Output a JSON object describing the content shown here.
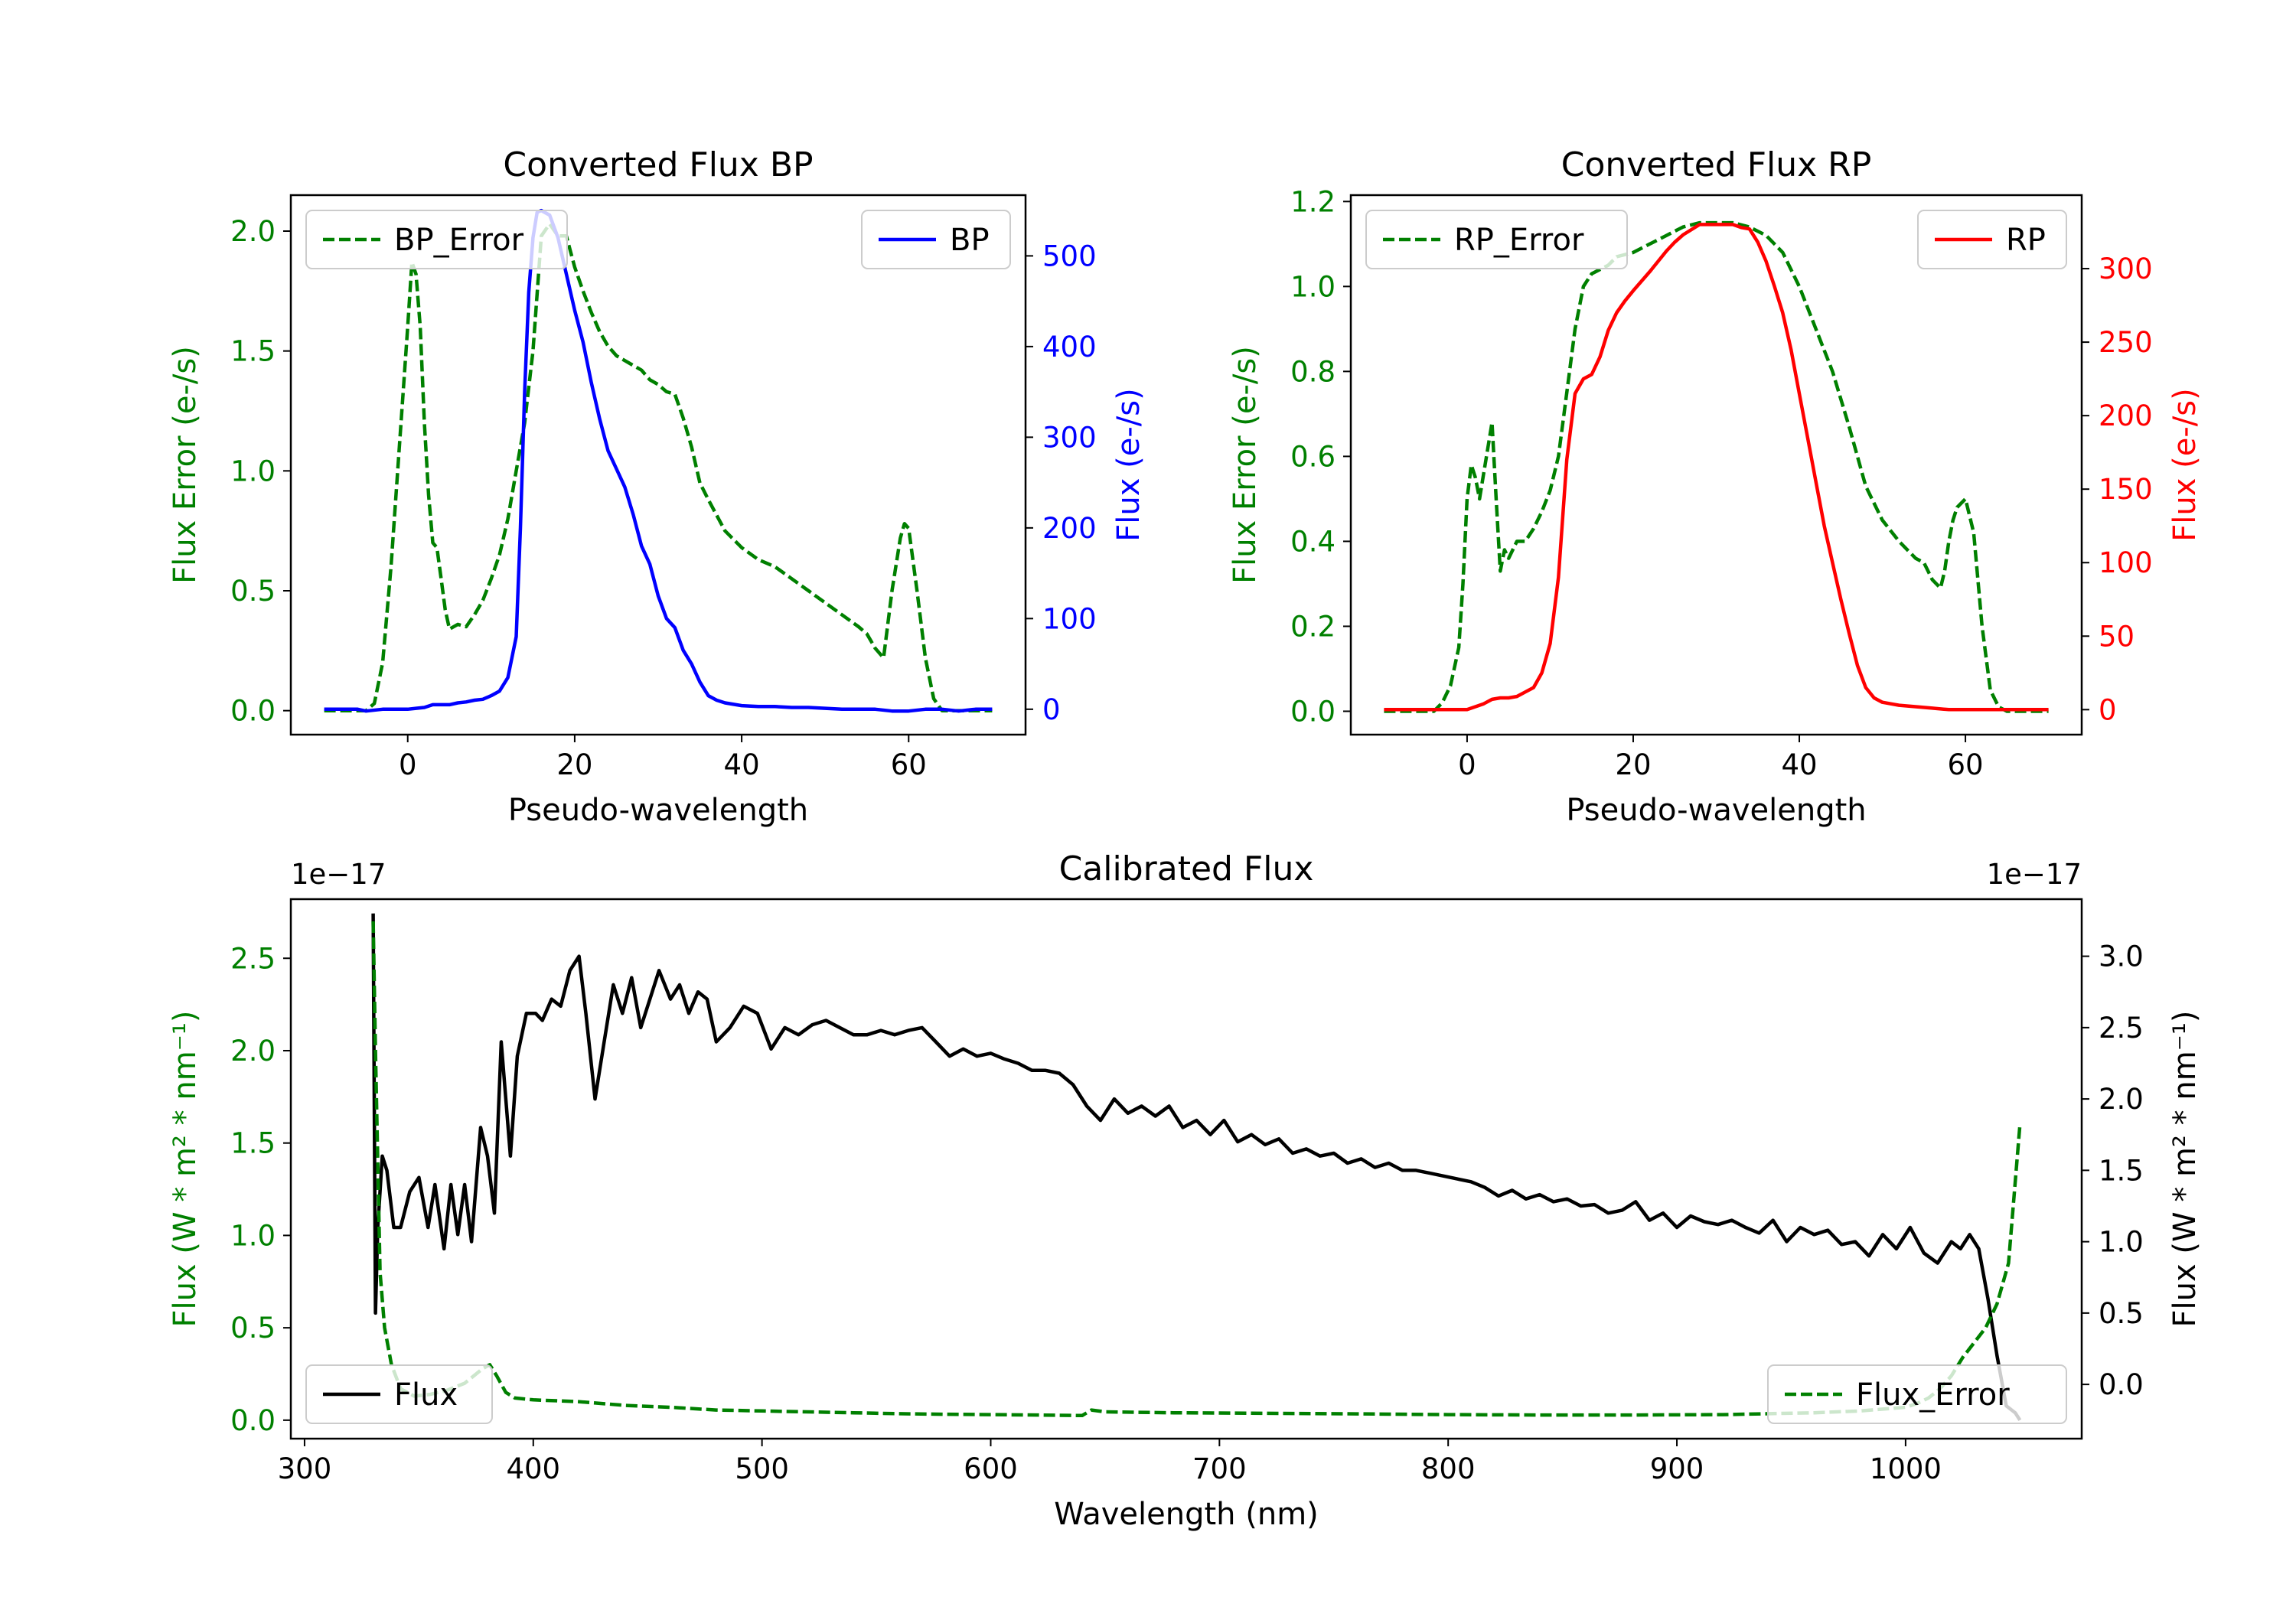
{
  "chart_data": [
    {
      "id": "bp",
      "type": "line",
      "title": "Converted Flux BP",
      "xlabel": "Pseudo-wavelength",
      "xlim": [
        -14,
        74
      ],
      "xticks": [
        0,
        20,
        40,
        60
      ],
      "left_axis": {
        "label": "Flux Error (e-/s)",
        "color": "#008000",
        "ylim": [
          -0.1,
          2.15
        ],
        "ticks": [
          "0.0",
          "0.5",
          "1.0",
          "1.5",
          "2.0"
        ]
      },
      "right_axis": {
        "label": "Flux (e-/s)",
        "color": "#0000ff",
        "ylim": [
          -28,
          567
        ],
        "ticks": [
          "0",
          "100",
          "200",
          "300",
          "400",
          "500"
        ]
      },
      "series": [
        {
          "name": "BP_Error",
          "axis": "left",
          "style": "dashed",
          "color": "#008000",
          "x": [
            -10,
            -5,
            -4,
            -3,
            -2,
            -1,
            0,
            0.5,
            1,
            1.5,
            2,
            2.5,
            3,
            3.5,
            4,
            4.5,
            5,
            6,
            7,
            8,
            9,
            10,
            11,
            12,
            13,
            14,
            15,
            16,
            17,
            18,
            19,
            20,
            21,
            22,
            23,
            24,
            25,
            26,
            27,
            28,
            29,
            30,
            31,
            32,
            33,
            34,
            35,
            36,
            38,
            40,
            42,
            44,
            46,
            48,
            50,
            52,
            54,
            55,
            56,
            57,
            58,
            59,
            59.5,
            60,
            61,
            62,
            63,
            64,
            65,
            70
          ],
          "y": [
            0,
            0,
            0.03,
            0.2,
            0.6,
            1.1,
            1.6,
            1.87,
            1.82,
            1.6,
            1.2,
            0.9,
            0.7,
            0.68,
            0.55,
            0.42,
            0.34,
            0.36,
            0.35,
            0.4,
            0.46,
            0.55,
            0.65,
            0.8,
            1.0,
            1.2,
            1.5,
            1.98,
            2.03,
            1.98,
            1.98,
            1.85,
            1.75,
            1.66,
            1.58,
            1.52,
            1.48,
            1.46,
            1.44,
            1.42,
            1.38,
            1.36,
            1.33,
            1.32,
            1.22,
            1.1,
            0.95,
            0.88,
            0.75,
            0.68,
            0.63,
            0.6,
            0.55,
            0.5,
            0.45,
            0.4,
            0.35,
            0.32,
            0.26,
            0.22,
            0.5,
            0.72,
            0.78,
            0.76,
            0.5,
            0.22,
            0.05,
            0,
            0,
            0
          ]
        },
        {
          "name": "BP",
          "axis": "right",
          "style": "solid",
          "color": "#0000ff",
          "x": [
            -10,
            -6,
            -5,
            -3,
            -1,
            0,
            1,
            2,
            3,
            4,
            5,
            6,
            7,
            8,
            9,
            10,
            11,
            12,
            13,
            13.5,
            14,
            14.5,
            15,
            15.5,
            16,
            17,
            18,
            19,
            20,
            21,
            22,
            23,
            24,
            25,
            26,
            27,
            28,
            29,
            30,
            31,
            32,
            33,
            34,
            35,
            36,
            37,
            38,
            40,
            42,
            44,
            46,
            48,
            50,
            52,
            54,
            56,
            58,
            60,
            62,
            64,
            66,
            68,
            70
          ],
          "y": [
            0,
            0,
            -2,
            0,
            0,
            0,
            1,
            2,
            5,
            5,
            5,
            7,
            8,
            10,
            11,
            15,
            20,
            35,
            80,
            200,
            350,
            460,
            520,
            548,
            550,
            545,
            520,
            480,
            440,
            405,
            360,
            320,
            285,
            265,
            245,
            215,
            180,
            160,
            125,
            100,
            90,
            65,
            50,
            30,
            15,
            10,
            7,
            4,
            3,
            3,
            2,
            2,
            1,
            0,
            0,
            0,
            -2,
            -2,
            0,
            0,
            -2,
            0,
            0
          ]
        }
      ],
      "legends": [
        {
          "position": "upper left",
          "label": "BP_Error"
        },
        {
          "position": "upper right",
          "label": "BP"
        }
      ]
    },
    {
      "id": "rp",
      "type": "line",
      "title": "Converted Flux RP",
      "xlabel": "Pseudo-wavelength",
      "xlim": [
        -14,
        74
      ],
      "xticks": [
        0,
        20,
        40,
        60
      ],
      "left_axis": {
        "label": "Flux Error (e-/s)",
        "color": "#008000",
        "ylim": [
          -0.055,
          1.215
        ],
        "ticks": [
          "0.0",
          "0.2",
          "0.4",
          "0.6",
          "0.8",
          "1.0",
          "1.2"
        ]
      },
      "right_axis": {
        "label": "Flux (e-/s)",
        "color": "#ff0000",
        "ylim": [
          -17,
          350
        ],
        "ticks": [
          "0",
          "50",
          "100",
          "150",
          "200",
          "250",
          "300"
        ]
      },
      "series": [
        {
          "name": "RP_Error",
          "axis": "left",
          "style": "dashed",
          "color": "#008000",
          "x": [
            -10,
            -5,
            -4,
            -3,
            -2,
            -1,
            -0.5,
            0,
            0.5,
            1,
            1.5,
            2,
            2.5,
            3,
            3.5,
            4,
            4.5,
            5,
            6,
            7,
            8,
            9,
            10,
            11,
            12,
            13,
            14,
            15,
            17,
            18,
            20,
            22,
            24,
            26,
            28,
            30,
            32,
            34,
            36,
            38,
            40,
            42,
            44,
            46,
            48,
            50,
            52,
            54,
            55,
            56,
            57,
            57.5,
            58,
            58.5,
            59,
            60,
            61,
            62,
            63,
            64,
            65,
            66,
            70
          ],
          "y": [
            0,
            0,
            0,
            0.02,
            0.06,
            0.15,
            0.3,
            0.5,
            0.58,
            0.55,
            0.5,
            0.56,
            0.62,
            0.68,
            0.5,
            0.33,
            0.38,
            0.36,
            0.4,
            0.4,
            0.43,
            0.47,
            0.52,
            0.6,
            0.75,
            0.9,
            1.0,
            1.03,
            1.05,
            1.07,
            1.08,
            1.1,
            1.12,
            1.14,
            1.15,
            1.15,
            1.15,
            1.14,
            1.12,
            1.08,
            1.0,
            0.9,
            0.8,
            0.67,
            0.53,
            0.45,
            0.4,
            0.36,
            0.35,
            0.31,
            0.29,
            0.33,
            0.4,
            0.45,
            0.48,
            0.5,
            0.42,
            0.2,
            0.05,
            0.01,
            0,
            0,
            0
          ]
        },
        {
          "name": "RP",
          "axis": "right",
          "style": "solid",
          "color": "#ff0000",
          "x": [
            -10,
            -2,
            0,
            1,
            2,
            3,
            4,
            5,
            6,
            7,
            8,
            9,
            10,
            11,
            12,
            13,
            14,
            15,
            16,
            17,
            18,
            19,
            20,
            22,
            24,
            25,
            26,
            28,
            30,
            32,
            33,
            34,
            35,
            36,
            37,
            38,
            39,
            40,
            41,
            42,
            43,
            44,
            45,
            46,
            47,
            48,
            49,
            50,
            51,
            52,
            54,
            56,
            58,
            60,
            62,
            64,
            66,
            70
          ],
          "y": [
            0,
            0,
            0,
            2,
            4,
            7,
            8,
            8,
            9,
            12,
            15,
            25,
            45,
            90,
            170,
            215,
            225,
            228,
            240,
            258,
            270,
            278,
            285,
            298,
            312,
            318,
            323,
            330,
            330,
            330,
            328,
            327,
            318,
            305,
            288,
            270,
            245,
            215,
            185,
            155,
            125,
            100,
            75,
            52,
            30,
            15,
            8,
            5,
            4,
            3,
            2,
            1,
            0,
            0,
            0,
            0,
            0,
            0
          ]
        }
      ],
      "legends": [
        {
          "position": "upper left",
          "label": "RP_Error"
        },
        {
          "position": "upper right",
          "label": "RP"
        }
      ]
    },
    {
      "id": "cal",
      "type": "line",
      "title": "Calibrated Flux",
      "xlabel": "Wavelength (nm)",
      "xlim": [
        294,
        1077
      ],
      "xticks": [
        300,
        400,
        500,
        600,
        700,
        800,
        900,
        1000
      ],
      "left_axis": {
        "label": "Flux (W * m² * nm⁻¹)",
        "color": "#008000",
        "offset": "1e−17",
        "ylim": [
          -0.1,
          2.82
        ],
        "ticks": [
          "0.0",
          "0.5",
          "1.0",
          "1.5",
          "2.0",
          "2.5"
        ]
      },
      "right_axis": {
        "label": "Flux (W * m² * nm⁻¹)",
        "color": "#000000",
        "offset": "1e−17",
        "ylim": [
          -0.38,
          3.4
        ],
        "ticks": [
          "0.0",
          "0.5",
          "1.0",
          "1.5",
          "2.0",
          "2.5",
          "3.0"
        ]
      },
      "series": [
        {
          "name": "Flux",
          "axis": "right",
          "style": "solid",
          "color": "#000000",
          "x": [
            330,
            331,
            332,
            334,
            336,
            339,
            342,
            346,
            350,
            354,
            357,
            361,
            364,
            367,
            370,
            373,
            377,
            380,
            383,
            386,
            390,
            393,
            397,
            401,
            404,
            408,
            412,
            416,
            420,
            423,
            427,
            431,
            435,
            439,
            443,
            447,
            451,
            455,
            460,
            464,
            468,
            472,
            476,
            480,
            486,
            492,
            498,
            504,
            510,
            516,
            522,
            528,
            534,
            540,
            546,
            552,
            558,
            564,
            570,
            576,
            582,
            588,
            594,
            600,
            606,
            612,
            618,
            624,
            630,
            636,
            642,
            648,
            654,
            660,
            666,
            672,
            678,
            684,
            690,
            696,
            702,
            708,
            714,
            720,
            726,
            732,
            738,
            744,
            750,
            756,
            762,
            768,
            774,
            780,
            786,
            792,
            798,
            804,
            810,
            816,
            822,
            828,
            834,
            840,
            846,
            852,
            858,
            864,
            870,
            876,
            882,
            888,
            894,
            900,
            906,
            912,
            918,
            924,
            930,
            936,
            942,
            948,
            954,
            960,
            966,
            972,
            978,
            984,
            990,
            996,
            1002,
            1008,
            1014,
            1020,
            1024,
            1028,
            1032,
            1036,
            1040,
            1044,
            1048,
            1050
          ],
          "y": [
            3.3,
            0.5,
            1.1,
            1.6,
            1.5,
            1.1,
            1.1,
            1.35,
            1.45,
            1.1,
            1.4,
            0.95,
            1.4,
            1.05,
            1.4,
            1.0,
            1.8,
            1.6,
            1.2,
            2.4,
            1.6,
            2.3,
            2.6,
            2.6,
            2.55,
            2.7,
            2.65,
            2.9,
            3.0,
            2.6,
            2.0,
            2.4,
            2.8,
            2.6,
            2.85,
            2.5,
            2.7,
            2.9,
            2.7,
            2.8,
            2.6,
            2.75,
            2.7,
            2.4,
            2.5,
            2.65,
            2.6,
            2.35,
            2.5,
            2.45,
            2.52,
            2.55,
            2.5,
            2.45,
            2.45,
            2.48,
            2.45,
            2.48,
            2.5,
            2.4,
            2.3,
            2.35,
            2.3,
            2.32,
            2.28,
            2.25,
            2.2,
            2.2,
            2.18,
            2.1,
            1.95,
            1.85,
            2.0,
            1.9,
            1.95,
            1.88,
            1.95,
            1.8,
            1.85,
            1.75,
            1.85,
            1.7,
            1.75,
            1.68,
            1.72,
            1.62,
            1.65,
            1.6,
            1.62,
            1.55,
            1.58,
            1.52,
            1.55,
            1.5,
            1.5,
            1.48,
            1.46,
            1.44,
            1.42,
            1.38,
            1.32,
            1.36,
            1.3,
            1.33,
            1.28,
            1.3,
            1.25,
            1.26,
            1.2,
            1.22,
            1.28,
            1.15,
            1.2,
            1.1,
            1.18,
            1.14,
            1.12,
            1.15,
            1.1,
            1.06,
            1.15,
            1.0,
            1.1,
            1.05,
            1.08,
            0.98,
            1.0,
            0.9,
            1.05,
            0.95,
            1.1,
            0.92,
            0.85,
            1.0,
            0.95,
            1.05,
            0.95,
            0.6,
            0.2,
            -0.15,
            -0.2,
            -0.25
          ]
        },
        {
          "name": "Flux_Error",
          "axis": "left",
          "style": "dashed",
          "color": "#008000",
          "x": [
            330,
            331,
            333,
            335,
            338,
            342,
            348,
            355,
            362,
            370,
            378,
            381,
            384,
            388,
            392,
            400,
            420,
            440,
            460,
            480,
            500,
            520,
            540,
            560,
            580,
            600,
            620,
            640,
            644,
            650,
            680,
            720,
            760,
            800,
            840,
            880,
            920,
            960,
            980,
            990,
            1000,
            1005,
            1010,
            1015,
            1020,
            1025,
            1030,
            1035,
            1040,
            1045,
            1050
          ],
          "y": [
            2.7,
            2.0,
            0.8,
            0.5,
            0.3,
            0.17,
            0.13,
            0.14,
            0.16,
            0.2,
            0.28,
            0.3,
            0.24,
            0.15,
            0.12,
            0.11,
            0.1,
            0.08,
            0.07,
            0.055,
            0.05,
            0.045,
            0.04,
            0.035,
            0.032,
            0.03,
            0.028,
            0.025,
            0.055,
            0.045,
            0.04,
            0.037,
            0.034,
            0.03,
            0.028,
            0.028,
            0.03,
            0.04,
            0.05,
            0.06,
            0.07,
            0.09,
            0.12,
            0.17,
            0.24,
            0.34,
            0.42,
            0.5,
            0.63,
            0.85,
            1.6
          ]
        }
      ],
      "legends": [
        {
          "position": "lower left",
          "label": "Flux"
        },
        {
          "position": "lower right",
          "label": "Flux_Error"
        }
      ]
    }
  ]
}
